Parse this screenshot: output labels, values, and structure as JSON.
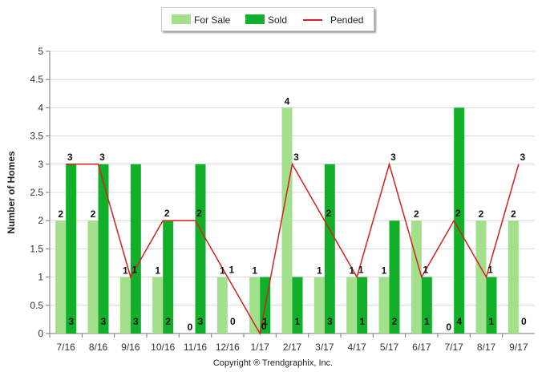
{
  "chart_data": {
    "type": "bar",
    "categories": [
      "7/16",
      "8/16",
      "9/16",
      "10/16",
      "11/16",
      "12/16",
      "1/17",
      "2/17",
      "3/17",
      "4/17",
      "5/17",
      "6/17",
      "7/17",
      "8/17",
      "9/17"
    ],
    "series": [
      {
        "name": "For Sale",
        "type": "bar",
        "color": "#a3e08c",
        "values": [
          2,
          2,
          1,
          1,
          0,
          1,
          1,
          4,
          1,
          1,
          1,
          2,
          0,
          2,
          2
        ]
      },
      {
        "name": "Sold",
        "type": "bar",
        "color": "#12b02a",
        "values": [
          3,
          3,
          3,
          2,
          3,
          0,
          1,
          1,
          3,
          1,
          2,
          1,
          4,
          1,
          0
        ]
      },
      {
        "name": "Pended",
        "type": "line",
        "color": "#d42020",
        "values": [
          3,
          3,
          1,
          2,
          2,
          1,
          0,
          3,
          2,
          1,
          3,
          1,
          2,
          1,
          3
        ]
      }
    ],
    "xlabel": "",
    "ylabel": "Number of Homes",
    "ylim": [
      0,
      5
    ],
    "yticks": [
      "0",
      "0.5",
      "1",
      "1.5",
      "2",
      "2.5",
      "3",
      "3.5",
      "4",
      "4.5",
      "5"
    ],
    "grid": true,
    "legend_position": "top-center"
  },
  "footer": {
    "copyright": "Copyright ® Trendgraphix, Inc."
  }
}
